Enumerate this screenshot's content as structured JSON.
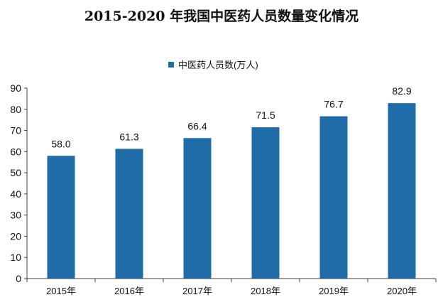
{
  "chart_data": {
    "type": "bar",
    "title": "2015-2020 年我国中医药人员数量变化情况",
    "categories": [
      "2015年",
      "2016年",
      "2017年",
      "2018年",
      "2019年",
      "2020年"
    ],
    "series": [
      {
        "name": "中医药人员数(万人)",
        "values": [
          58.0,
          61.3,
          66.4,
          71.5,
          76.7,
          82.9
        ]
      }
    ],
    "data_labels": [
      "58.0",
      "61.3",
      "66.4",
      "71.5",
      "76.7",
      "82.9"
    ],
    "y_ticks": [
      "0",
      "10",
      "20",
      "30",
      "40",
      "50",
      "60",
      "70",
      "80",
      "90"
    ],
    "ylim": [
      0,
      90
    ],
    "legend_position": "top-center",
    "grid": false,
    "bar_color": "#1F6CA8"
  }
}
